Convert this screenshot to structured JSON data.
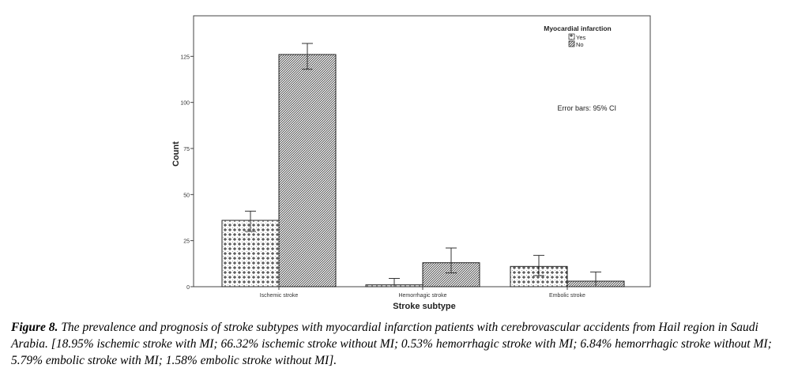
{
  "chart_data": {
    "type": "bar",
    "title": "",
    "xlabel": "Stroke subtype",
    "ylabel": "Count",
    "ylim": [
      0,
      147
    ],
    "yticks": [
      0,
      25,
      50,
      75,
      100,
      125
    ],
    "categories": [
      "Ischemic stroke",
      "Hemorrhagic stroke",
      "Embolic stroke"
    ],
    "legend": {
      "title": "Myocardial infarction",
      "position": "top-right"
    },
    "annotation": "Error bars: 95% CI",
    "series": [
      {
        "name": "Yes",
        "pattern": "cross",
        "values": [
          36,
          1,
          11
        ],
        "ci_low": [
          30,
          0,
          6
        ],
        "ci_high": [
          41,
          4.5,
          17
        ]
      },
      {
        "name": "No",
        "pattern": "hatch",
        "values": [
          126,
          13,
          3
        ],
        "ci_low": [
          118,
          7.5,
          0
        ],
        "ci_high": [
          132,
          21,
          8
        ]
      }
    ]
  },
  "caption": {
    "label": "Figure 8.",
    "text": " The prevalence and prognosis of stroke subtypes with myocardial infarction patients with cerebrovascular accidents from Hail region in Saudi Arabia. [18.95% ischemic stroke with MI; 66.32% ischemic stroke without MI; 0.53% hemorrhagic stroke with MI; 6.84% hemorrhagic stroke without MI; 5.79% embolic stroke with MI; 1.58% embolic stroke without MI]."
  }
}
